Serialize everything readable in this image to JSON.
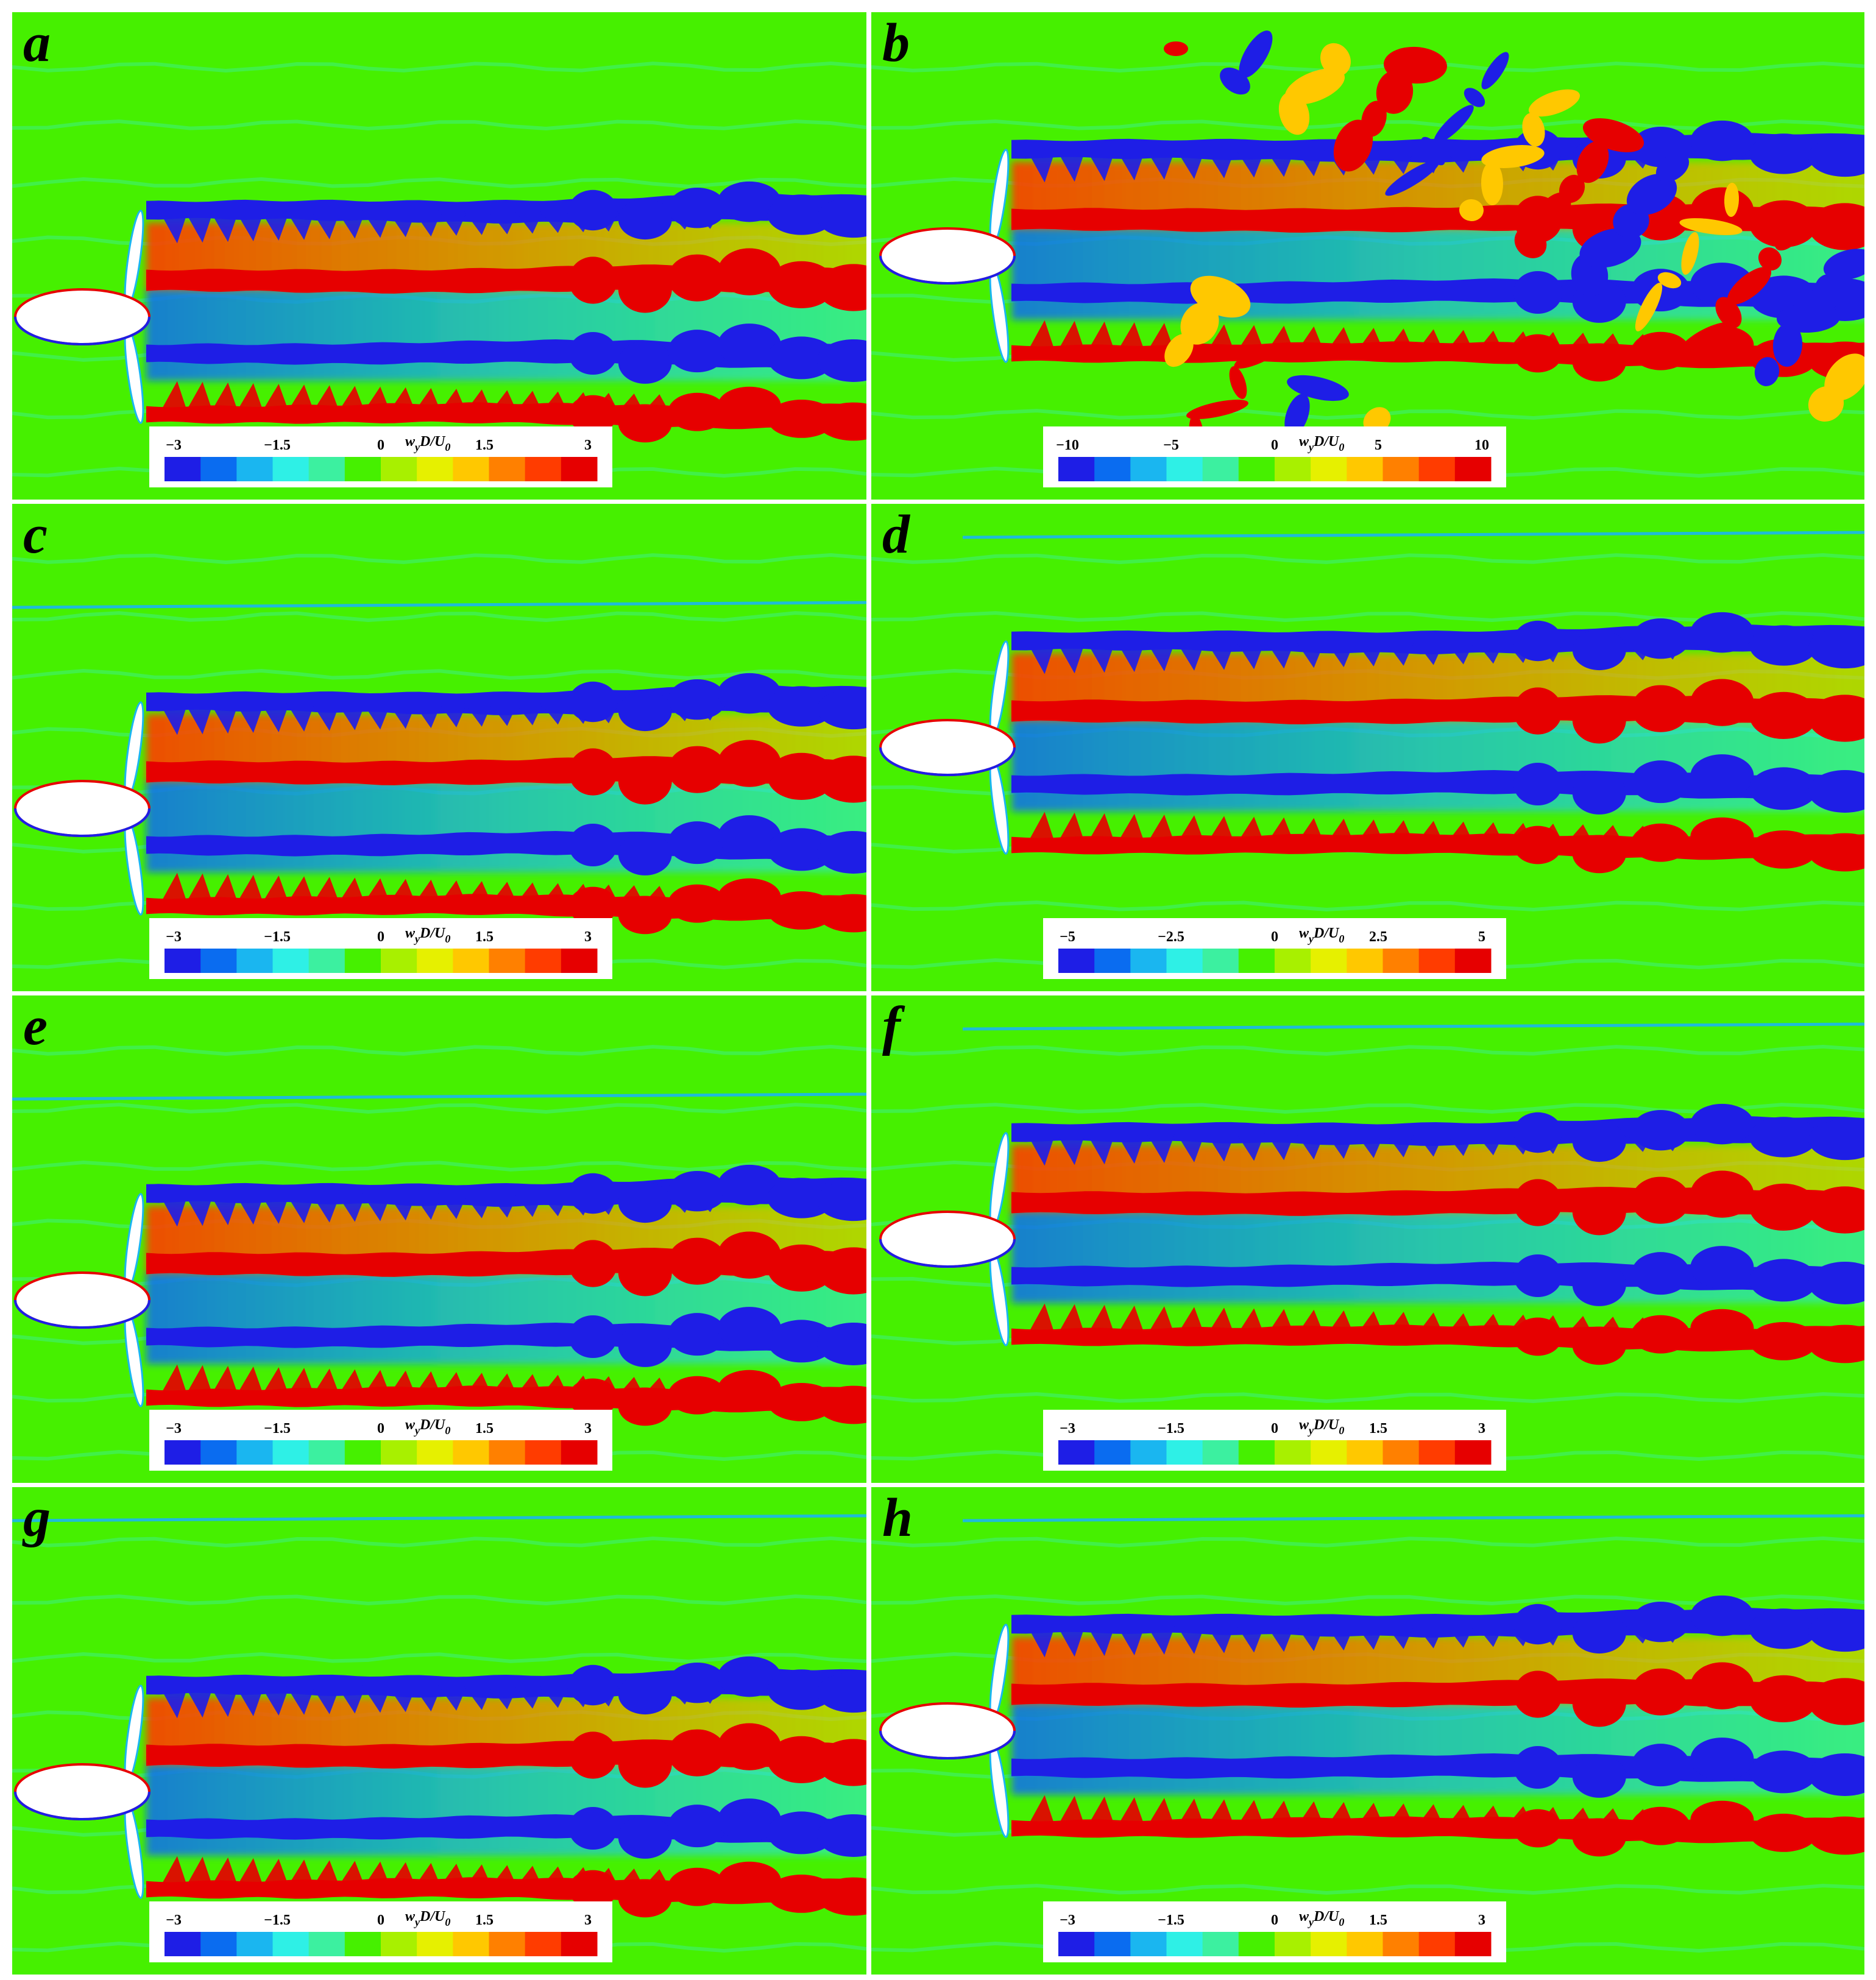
{
  "colormap": [
    "#1e1ee6",
    "#0a6cf0",
    "#1ab6f0",
    "#2ef0e6",
    "#3cf0a0",
    "#46f000",
    "#a8f000",
    "#e6f000",
    "#ffc800",
    "#ff8000",
    "#ff3c00",
    "#e60000"
  ],
  "background_color": "#46f000",
  "colorbar_title": {
    "main": "w",
    "sub_y": "y",
    "mid": "D/U",
    "sub_0": "0"
  },
  "panels": [
    {
      "id": "a",
      "label": "a",
      "ticks": [
        "−3",
        "−1.5",
        "0",
        "1.5",
        "3"
      ]
    },
    {
      "id": "b",
      "label": "b",
      "ticks": [
        "−10",
        "−5",
        "0",
        "5",
        "10"
      ]
    },
    {
      "id": "c",
      "label": "c",
      "ticks": [
        "−3",
        "−1.5",
        "0",
        "1.5",
        "3"
      ]
    },
    {
      "id": "d",
      "label": "d",
      "ticks": [
        "−5",
        "−2.5",
        "0",
        "2.5",
        "5"
      ]
    },
    {
      "id": "e",
      "label": "e",
      "ticks": [
        "−3",
        "−1.5",
        "0",
        "1.5",
        "3"
      ]
    },
    {
      "id": "f",
      "label": "f",
      "ticks": [
        "−3",
        "−1.5",
        "0",
        "1.5",
        "3"
      ]
    },
    {
      "id": "g",
      "label": "g",
      "ticks": [
        "−3",
        "−1.5",
        "0",
        "1.5",
        "3"
      ]
    },
    {
      "id": "h",
      "label": "h",
      "ticks": [
        "−3",
        "−1.5",
        "0",
        "1.5",
        "3"
      ]
    }
  ]
}
